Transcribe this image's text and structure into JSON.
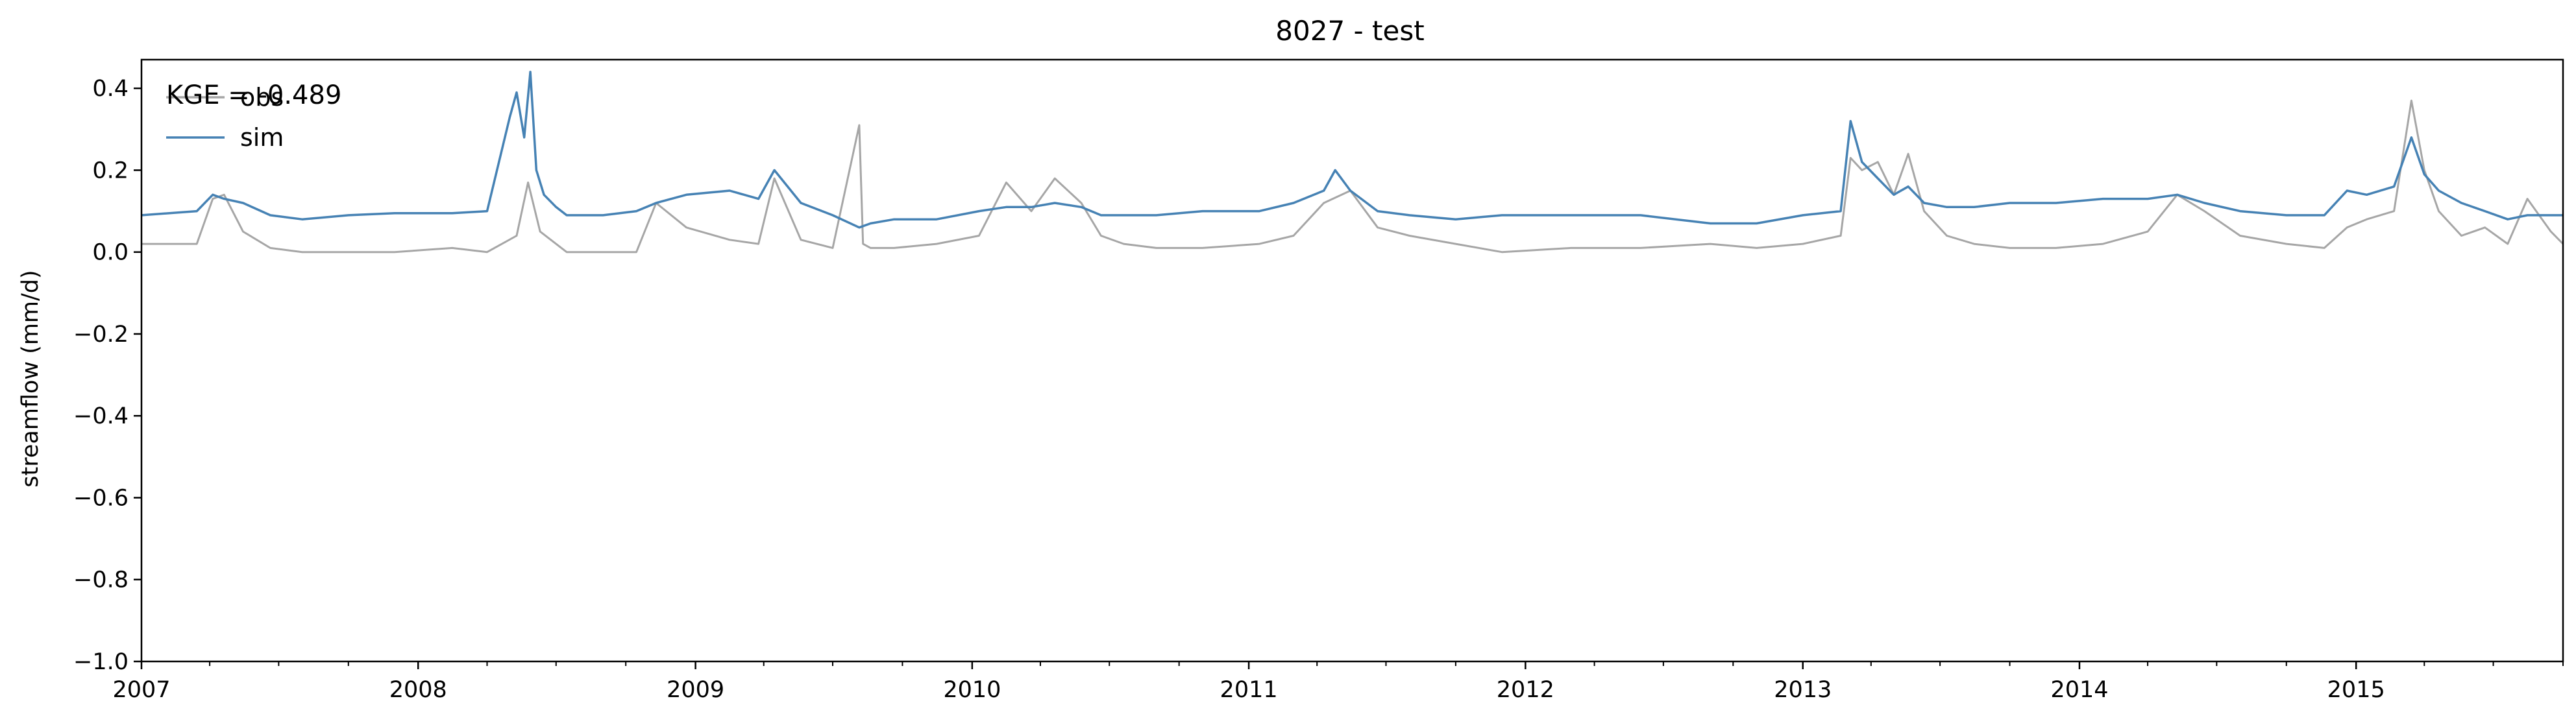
{
  "chart_data": {
    "type": "line",
    "title": "8027 - test",
    "xlabel": "",
    "ylabel": "streamflow (mm/d)",
    "xlim": [
      "2007-01-01",
      "2015-10-01"
    ],
    "ylim": [
      -1.0,
      0.47
    ],
    "yticks": [
      -1.0,
      -0.8,
      -0.6,
      -0.4,
      -0.2,
      0.0,
      0.2,
      0.4
    ],
    "ytick_labels": [
      "−1.0",
      "−0.8",
      "−0.6",
      "−0.4",
      "−0.2",
      "0.0",
      "0.2",
      "0.4"
    ],
    "xticks": [
      "2007-01-01",
      "2008-01-01",
      "2009-01-01",
      "2010-01-01",
      "2011-01-01",
      "2012-01-01",
      "2013-01-01",
      "2014-01-01",
      "2015-01-01"
    ],
    "xtick_labels": [
      "2007",
      "2008",
      "2009",
      "2010",
      "2011",
      "2012",
      "2013",
      "2014",
      "2015"
    ],
    "annotation": "KGE = -0.489",
    "legend_position": "upper-left",
    "grid": false,
    "series": [
      {
        "name": "obs",
        "color": "#a6a6a6",
        "x": [
          "2007-01-01",
          "2007-03-15",
          "2007-04-05",
          "2007-04-20",
          "2007-05-15",
          "2007-06-20",
          "2007-08-01",
          "2007-10-01",
          "2007-12-01",
          "2008-02-15",
          "2008-04-01",
          "2008-05-10",
          "2008-05-25",
          "2008-06-10",
          "2008-07-15",
          "2008-09-01",
          "2008-10-15",
          "2008-11-10",
          "2008-12-20",
          "2009-02-15",
          "2009-03-25",
          "2009-04-15",
          "2009-05-20",
          "2009-07-01",
          "2009-08-05",
          "2009-08-10",
          "2009-08-20",
          "2009-09-20",
          "2009-11-15",
          "2010-01-10",
          "2010-02-15",
          "2010-03-20",
          "2010-04-20",
          "2010-05-25",
          "2010-06-20",
          "2010-07-20",
          "2010-09-01",
          "2010-11-01",
          "2011-01-15",
          "2011-03-01",
          "2011-04-10",
          "2011-05-15",
          "2011-06-20",
          "2011-08-01",
          "2011-10-01",
          "2011-12-01",
          "2012-03-01",
          "2012-06-01",
          "2012-09-01",
          "2012-11-01",
          "2013-01-01",
          "2013-02-20",
          "2013-03-05",
          "2013-03-20",
          "2013-04-10",
          "2013-05-01",
          "2013-05-20",
          "2013-06-10",
          "2013-07-10",
          "2013-08-15",
          "2013-10-01",
          "2013-12-01",
          "2014-02-01",
          "2014-04-01",
          "2014-05-10",
          "2014-06-15",
          "2014-08-01",
          "2014-10-01",
          "2014-11-20",
          "2014-12-20",
          "2015-01-15",
          "2015-02-20",
          "2015-03-15",
          "2015-04-01",
          "2015-04-20",
          "2015-05-20",
          "2015-06-20",
          "2015-07-20",
          "2015-08-15",
          "2015-09-15",
          "2015-10-01"
        ],
        "y": [
          0.02,
          0.02,
          0.13,
          0.14,
          0.05,
          0.01,
          0.0,
          0.0,
          0.0,
          0.01,
          0.0,
          0.04,
          0.17,
          0.05,
          0.0,
          0.0,
          0.0,
          0.12,
          0.06,
          0.03,
          0.02,
          0.18,
          0.03,
          0.01,
          0.31,
          0.02,
          0.01,
          0.01,
          0.02,
          0.04,
          0.17,
          0.1,
          0.18,
          0.12,
          0.04,
          0.02,
          0.01,
          0.01,
          0.02,
          0.04,
          0.12,
          0.15,
          0.06,
          0.04,
          0.02,
          0.0,
          0.01,
          0.01,
          0.02,
          0.01,
          0.02,
          0.04,
          0.23,
          0.2,
          0.22,
          0.14,
          0.24,
          0.1,
          0.04,
          0.02,
          0.01,
          0.01,
          0.02,
          0.05,
          0.14,
          0.1,
          0.04,
          0.02,
          0.01,
          0.06,
          0.08,
          0.1,
          0.37,
          0.2,
          0.1,
          0.04,
          0.06,
          0.02,
          0.13,
          0.05,
          0.02
        ]
      },
      {
        "name": "sim",
        "color": "#4682b4",
        "x": [
          "2007-01-01",
          "2007-03-15",
          "2007-04-05",
          "2007-04-20",
          "2007-05-15",
          "2007-06-20",
          "2007-08-01",
          "2007-10-01",
          "2007-12-01",
          "2008-02-15",
          "2008-04-01",
          "2008-05-01",
          "2008-05-10",
          "2008-05-20",
          "2008-05-28",
          "2008-06-05",
          "2008-06-15",
          "2008-07-01",
          "2008-07-15",
          "2008-09-01",
          "2008-10-15",
          "2008-11-10",
          "2008-12-20",
          "2009-02-15",
          "2009-03-25",
          "2009-04-15",
          "2009-05-20",
          "2009-07-01",
          "2009-08-05",
          "2009-08-20",
          "2009-09-20",
          "2009-11-15",
          "2010-01-10",
          "2010-02-15",
          "2010-03-20",
          "2010-04-20",
          "2010-05-25",
          "2010-06-20",
          "2010-07-20",
          "2010-09-01",
          "2010-11-01",
          "2011-01-15",
          "2011-03-01",
          "2011-04-10",
          "2011-04-25",
          "2011-05-15",
          "2011-06-20",
          "2011-08-01",
          "2011-10-01",
          "2011-12-01",
          "2012-03-01",
          "2012-06-01",
          "2012-09-01",
          "2012-11-01",
          "2013-01-01",
          "2013-02-20",
          "2013-03-05",
          "2013-03-20",
          "2013-04-10",
          "2013-05-01",
          "2013-05-20",
          "2013-06-10",
          "2013-07-10",
          "2013-08-15",
          "2013-10-01",
          "2013-12-01",
          "2014-02-01",
          "2014-04-01",
          "2014-05-10",
          "2014-06-15",
          "2014-08-01",
          "2014-10-01",
          "2014-11-20",
          "2014-12-20",
          "2015-01-15",
          "2015-02-20",
          "2015-03-15",
          "2015-04-01",
          "2015-04-20",
          "2015-05-20",
          "2015-06-20",
          "2015-07-20",
          "2015-08-15",
          "2015-09-15",
          "2015-10-01"
        ],
        "y": [
          0.09,
          0.1,
          0.14,
          0.13,
          0.12,
          0.09,
          0.08,
          0.09,
          0.095,
          0.095,
          0.1,
          0.33,
          0.39,
          0.28,
          0.44,
          0.2,
          0.14,
          0.11,
          0.09,
          0.09,
          0.1,
          0.12,
          0.14,
          0.15,
          0.13,
          0.2,
          0.12,
          0.09,
          0.06,
          0.07,
          0.08,
          0.08,
          0.1,
          0.11,
          0.11,
          0.12,
          0.11,
          0.09,
          0.09,
          0.09,
          0.1,
          0.1,
          0.12,
          0.15,
          0.2,
          0.15,
          0.1,
          0.09,
          0.08,
          0.09,
          0.09,
          0.09,
          0.07,
          0.07,
          0.09,
          0.1,
          0.32,
          0.22,
          0.18,
          0.14,
          0.16,
          0.12,
          0.11,
          0.11,
          0.12,
          0.12,
          0.13,
          0.13,
          0.14,
          0.12,
          0.1,
          0.09,
          0.09,
          0.15,
          0.14,
          0.16,
          0.28,
          0.19,
          0.15,
          0.12,
          0.1,
          0.08,
          0.09,
          0.09,
          0.09
        ]
      }
    ]
  }
}
